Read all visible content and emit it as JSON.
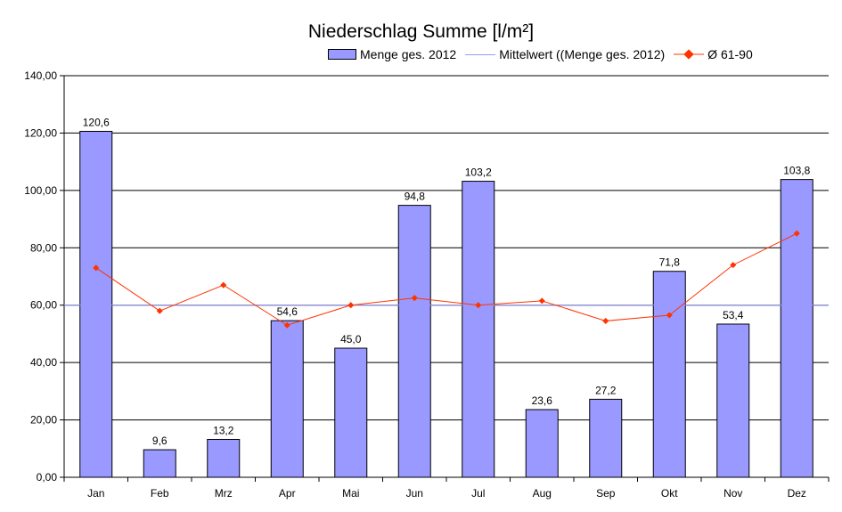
{
  "chart_data": {
    "type": "bar",
    "title": "Niederschlag Summe [l/m²]",
    "categories": [
      "Jan",
      "Feb",
      "Mrz",
      "Apr",
      "Mai",
      "Jun",
      "Jul",
      "Aug",
      "Sep",
      "Okt",
      "Nov",
      "Dez"
    ],
    "series": [
      {
        "name": "Menge ges. 2012",
        "type": "bar",
        "values": [
          120.6,
          9.6,
          13.2,
          54.6,
          45.0,
          94.8,
          103.2,
          23.6,
          27.2,
          71.8,
          53.4,
          103.8
        ],
        "data_labels": [
          "120,6",
          "9,6",
          "13,2",
          "54,6",
          "45,0",
          "94,8",
          "103,2",
          "23,6",
          "27,2",
          "71,8",
          "53,4",
          "103,8"
        ],
        "color": "#9999ff"
      },
      {
        "name": "Mittelwert ((Menge ges. 2012)",
        "type": "line",
        "value": 60.0,
        "color": "#9999ff"
      },
      {
        "name": "Ø 61-90",
        "type": "line",
        "values": [
          73.0,
          58.0,
          67.0,
          53.0,
          60.0,
          62.5,
          60.0,
          61.5,
          54.5,
          56.5,
          74.0,
          85.0
        ],
        "color": "#ff3300"
      }
    ],
    "y_ticks": [
      "0,00",
      "20,00",
      "40,00",
      "60,00",
      "80,00",
      "100,00",
      "120,00",
      "140,00"
    ],
    "ylim": [
      0,
      140
    ],
    "grid": true,
    "legend_position": "top"
  }
}
